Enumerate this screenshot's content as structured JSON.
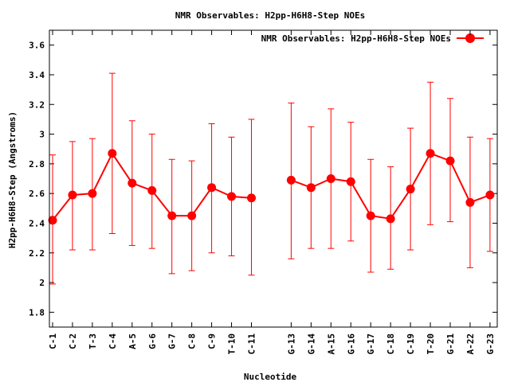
{
  "chart_data": {
    "type": "line",
    "title": "NMR Observables: H2pp-H6H8-Step NOEs",
    "xlabel": "Nucleotide",
    "ylabel": "H2pp-H6H8-Step (Angstroms)",
    "ylim": [
      1.7,
      3.7
    ],
    "yticks": [
      "1.8",
      "2",
      "2.2",
      "2.4",
      "2.6",
      "2.8",
      "3",
      "3.2",
      "3.4",
      "3.6"
    ],
    "grid": false,
    "legend_position": "top-right",
    "series_color": "#ff0000",
    "categories": [
      "C-1",
      "C-2",
      "T-3",
      "C-4",
      "A-5",
      "G-6",
      "G-7",
      "C-8",
      "C-9",
      "T-10",
      "C-11",
      "",
      "G-13",
      "G-14",
      "A-15",
      "G-16",
      "G-17",
      "C-18",
      "C-19",
      "T-20",
      "G-21",
      "A-22",
      "G-23"
    ],
    "series": [
      {
        "name": "NMR Observables: H2pp-H6H8-Step NOEs",
        "values": [
          2.42,
          2.59,
          2.6,
          2.87,
          2.67,
          2.62,
          2.45,
          2.45,
          2.64,
          2.58,
          2.57,
          null,
          2.69,
          2.64,
          2.7,
          2.68,
          2.45,
          2.43,
          2.63,
          2.87,
          2.82,
          2.54,
          2.59
        ],
        "error_low": [
          1.99,
          2.22,
          2.22,
          2.33,
          2.25,
          2.23,
          2.06,
          2.08,
          2.2,
          2.18,
          2.05,
          null,
          2.16,
          2.23,
          2.23,
          2.28,
          2.07,
          2.09,
          2.22,
          2.39,
          2.41,
          2.1,
          2.21
        ],
        "error_high": [
          2.86,
          2.95,
          2.97,
          3.41,
          3.09,
          3.0,
          2.83,
          2.82,
          3.07,
          2.98,
          3.1,
          null,
          3.21,
          3.05,
          3.17,
          3.08,
          2.83,
          2.78,
          3.04,
          3.35,
          3.24,
          2.98,
          2.97
        ]
      }
    ]
  }
}
